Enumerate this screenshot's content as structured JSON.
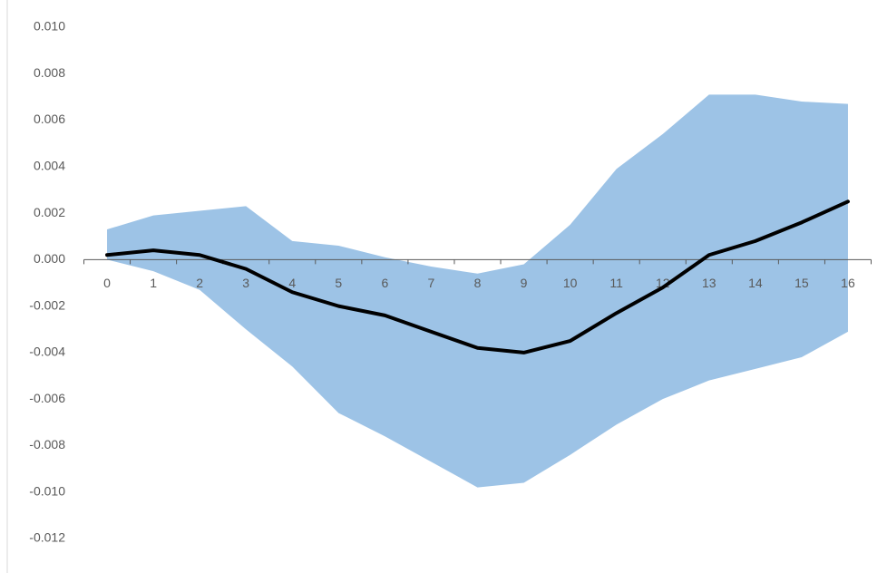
{
  "chart_data": {
    "type": "line",
    "categories": [
      "0",
      "1",
      "2",
      "3",
      "4",
      "5",
      "6",
      "7",
      "8",
      "9",
      "10",
      "11",
      "12",
      "13",
      "14",
      "15",
      "16"
    ],
    "series": [
      {
        "color": "#000000",
        "values": [
          0.0002,
          0.0004,
          0.0002,
          -0.0004,
          -0.0014,
          -0.002,
          -0.0024,
          -0.0031,
          -0.0038,
          -0.004,
          -0.0035,
          -0.0023,
          -0.0012,
          0.0002,
          0.0008,
          0.0016,
          0.0025
        ]
      }
    ],
    "band": {
      "color": "#9dc3e6",
      "upper": [
        0.0013,
        0.0019,
        0.0021,
        0.0023,
        0.0008,
        0.0006,
        0.0001,
        -0.0003,
        -0.0006,
        -0.0002,
        0.0015,
        0.0039,
        0.0054,
        0.0071,
        0.0071,
        0.0068,
        0.0067
      ],
      "lower": [
        0.0,
        -0.0005,
        -0.0013,
        -0.003,
        -0.0046,
        -0.0066,
        -0.0076,
        -0.0087,
        -0.0098,
        -0.0096,
        -0.0084,
        -0.0071,
        -0.006,
        -0.0052,
        -0.0047,
        -0.0042,
        -0.0031
      ]
    },
    "ylim": [
      -0.012,
      0.01
    ],
    "yticks": [
      {
        "value": 0.01,
        "label": "0.010"
      },
      {
        "value": 0.008,
        "label": "0.008"
      },
      {
        "value": 0.006,
        "label": "0.006"
      },
      {
        "value": 0.004,
        "label": "0.004"
      },
      {
        "value": 0.002,
        "label": "0.002"
      },
      {
        "value": 0,
        "label": "0.000"
      },
      {
        "value": -0.002,
        "label": "-0.002"
      },
      {
        "value": -0.004,
        "label": "-0.004"
      },
      {
        "value": -0.006,
        "label": "-0.006"
      },
      {
        "value": -0.008,
        "label": "-0.008"
      },
      {
        "value": -0.01,
        "label": "-0.010"
      },
      {
        "value": -0.012,
        "label": "-0.012"
      }
    ]
  }
}
